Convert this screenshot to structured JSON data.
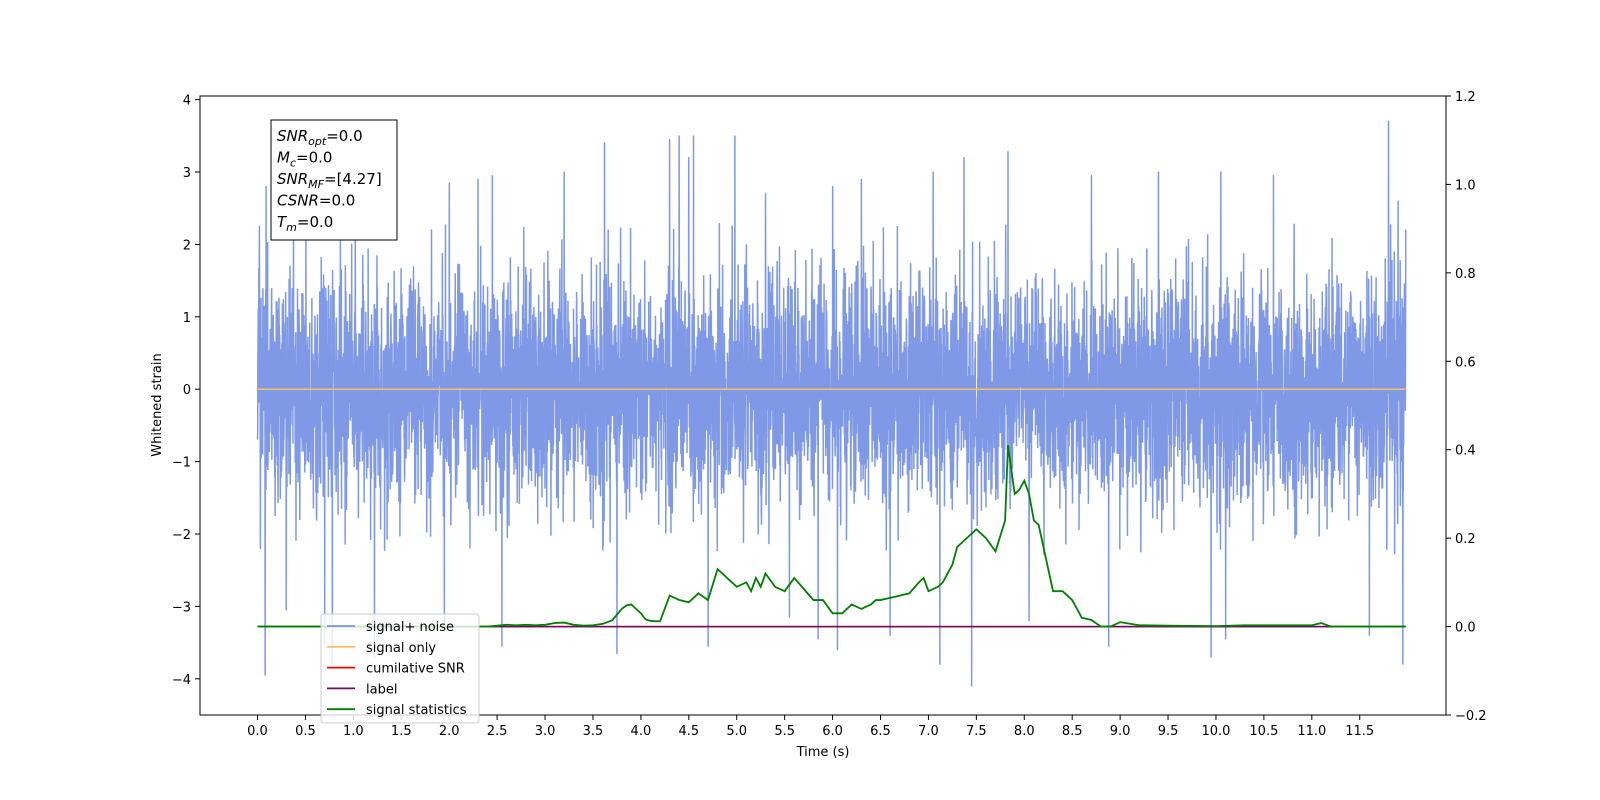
{
  "chart_data": {
    "type": "line",
    "xlabel": "Time (s)",
    "ylabel": "Whitened strain",
    "xlim": [
      -0.6,
      12.4
    ],
    "ylim": [
      -4.5,
      4.05
    ],
    "y2lim": [
      -0.2,
      1.2
    ],
    "x_ticks": [
      0.0,
      0.5,
      1.0,
      1.5,
      2.0,
      2.5,
      3.0,
      3.5,
      4.0,
      4.5,
      5.0,
      5.5,
      6.0,
      6.5,
      7.0,
      7.5,
      8.0,
      8.5,
      9.0,
      9.5,
      10.0,
      10.5,
      11.0,
      11.5
    ],
    "x_tick_labels": [
      "0.0",
      "0.5",
      "1.0",
      "1.5",
      "2.0",
      "2.5",
      "3.0",
      "3.5",
      "4.0",
      "4.5",
      "5.0",
      "5.5",
      "6.0",
      "6.5",
      "7.0",
      "7.5",
      "8.0",
      "8.5",
      "9.0",
      "9.5",
      "10.0",
      "10.5",
      "11.0",
      "11.5"
    ],
    "y_ticks": [
      4,
      3,
      2,
      1,
      0,
      -1,
      -2,
      -3,
      -4
    ],
    "y_tick_labels": [
      "4",
      "3",
      "2",
      "1",
      "0",
      "−1",
      "−2",
      "−3",
      "−4"
    ],
    "y2_ticks": [
      1.2,
      1.0,
      0.8,
      0.6,
      0.4,
      0.2,
      0.0,
      -0.2
    ],
    "y2_tick_labels": [
      "1.2",
      "1.0",
      "0.8",
      "0.6",
      "0.4",
      "0.2",
      "0.0",
      "−0.2"
    ],
    "annotation": [
      {
        "base": "SNR",
        "sub": "opt",
        "value": "=0.0"
      },
      {
        "base": "M",
        "sub": "c",
        "value": "=0.0"
      },
      {
        "base": "SNR",
        "sub": "MF",
        "value": "=[4.27]"
      },
      {
        "base": "CSNR",
        "sub": "",
        "value": "=0.0"
      },
      {
        "base": "T",
        "sub": "m",
        "value": "=0.0"
      }
    ],
    "legend_position": "lower-left",
    "series": [
      {
        "name": "signal+ noise",
        "color": "#7893e6",
        "axis": "left",
        "note": "white noise, amplitude ~ +/-2.3, extremes listed below",
        "x_range": [
          0.0,
          11.98
        ],
        "spikes": [
          [
            0.02,
            2.25
          ],
          [
            0.03,
            -2.2
          ],
          [
            0.08,
            -3.95
          ],
          [
            0.09,
            2.8
          ],
          [
            0.3,
            -3.05
          ],
          [
            0.7,
            -3.5
          ],
          [
            0.78,
            -3.8
          ],
          [
            1.02,
            2.6
          ],
          [
            1.22,
            -3.7
          ],
          [
            1.95,
            -3.3
          ],
          [
            2.0,
            2.85
          ],
          [
            2.3,
            2.9
          ],
          [
            2.45,
            2.95
          ],
          [
            2.55,
            -3.55
          ],
          [
            3.2,
            3.0
          ],
          [
            3.62,
            3.4
          ],
          [
            3.75,
            -3.65
          ],
          [
            4.3,
            3.45
          ],
          [
            4.4,
            3.5
          ],
          [
            4.5,
            3.2
          ],
          [
            4.55,
            3.5
          ],
          [
            4.7,
            -3.55
          ],
          [
            4.98,
            3.5
          ],
          [
            5.3,
            2.7
          ],
          [
            5.55,
            -3.15
          ],
          [
            5.85,
            -3.45
          ],
          [
            6.0,
            2.8
          ],
          [
            6.05,
            -3.6
          ],
          [
            6.3,
            2.9
          ],
          [
            6.6,
            -3.4
          ],
          [
            7.05,
            3.0
          ],
          [
            7.12,
            -3.8
          ],
          [
            7.37,
            3.2
          ],
          [
            7.45,
            -4.1
          ],
          [
            7.83,
            3.28
          ],
          [
            8.05,
            -3.2
          ],
          [
            8.7,
            2.95
          ],
          [
            8.88,
            -3.55
          ],
          [
            9.4,
            3.0
          ],
          [
            9.95,
            -3.7
          ],
          [
            10.05,
            3.0
          ],
          [
            10.1,
            -3.45
          ],
          [
            10.6,
            2.95
          ],
          [
            11.6,
            -3.4
          ],
          [
            11.8,
            3.7
          ],
          [
            11.9,
            2.6
          ],
          [
            11.95,
            -3.8
          ],
          [
            11.98,
            2.2
          ]
        ]
      },
      {
        "name": "signal only",
        "color": "#ffbf66",
        "axis": "left",
        "x": [
          0.0,
          11.98
        ],
        "y": [
          0.0,
          0.0
        ]
      },
      {
        "name": "cumilative SNR",
        "color": "#ff0000",
        "axis": "right",
        "x": [
          0.0,
          11.98
        ],
        "y": [
          0.0,
          0.0
        ]
      },
      {
        "name": "label",
        "color": "#6a0d6a",
        "axis": "right",
        "x": [
          0.0,
          11.98
        ],
        "y": [
          0.0,
          0.0
        ]
      },
      {
        "name": "signal statistics",
        "color": "#007f00",
        "axis": "right",
        "x": [
          0.0,
          2.4,
          2.5,
          2.6,
          2.7,
          2.8,
          2.9,
          3.0,
          3.1,
          3.2,
          3.3,
          3.4,
          3.5,
          3.6,
          3.7,
          3.8,
          3.85,
          3.9,
          3.95,
          4.0,
          4.05,
          4.1,
          4.15,
          4.2,
          4.3,
          4.4,
          4.5,
          4.55,
          4.6,
          4.7,
          4.8,
          4.85,
          4.9,
          5.0,
          5.1,
          5.15,
          5.2,
          5.25,
          5.3,
          5.4,
          5.5,
          5.6,
          5.7,
          5.8,
          5.9,
          6.0,
          6.1,
          6.2,
          6.3,
          6.4,
          6.45,
          6.5,
          6.6,
          6.7,
          6.8,
          6.9,
          6.95,
          7.0,
          7.1,
          7.15,
          7.2,
          7.25,
          7.3,
          7.4,
          7.5,
          7.6,
          7.7,
          7.8,
          7.83,
          7.9,
          7.95,
          8.0,
          8.05,
          8.1,
          8.15,
          8.2,
          8.3,
          8.4,
          8.5,
          8.6,
          8.7,
          8.8,
          8.9,
          9.0,
          9.2,
          9.5,
          10.0,
          10.3,
          10.6,
          11.0,
          11.1,
          11.2,
          11.98
        ],
        "y": [
          0.0,
          0.0,
          0.002,
          0.004,
          0.003,
          0.004,
          0.003,
          0.004,
          0.008,
          0.009,
          0.004,
          0.002,
          0.003,
          0.006,
          0.014,
          0.04,
          0.048,
          0.05,
          0.04,
          0.03,
          0.016,
          0.013,
          0.012,
          0.012,
          0.07,
          0.06,
          0.055,
          0.065,
          0.075,
          0.06,
          0.13,
          0.12,
          0.11,
          0.09,
          0.1,
          0.08,
          0.11,
          0.09,
          0.12,
          0.09,
          0.08,
          0.11,
          0.085,
          0.06,
          0.06,
          0.03,
          0.03,
          0.05,
          0.04,
          0.05,
          0.06,
          0.06,
          0.065,
          0.07,
          0.075,
          0.1,
          0.11,
          0.08,
          0.09,
          0.1,
          0.12,
          0.14,
          0.18,
          0.2,
          0.22,
          0.2,
          0.17,
          0.24,
          0.41,
          0.3,
          0.31,
          0.33,
          0.3,
          0.24,
          0.23,
          0.18,
          0.08,
          0.08,
          0.06,
          0.02,
          0.015,
          0.0,
          0.0,
          0.01,
          0.003,
          0.002,
          0.001,
          0.003,
          0.003,
          0.003,
          0.008,
          0.0,
          0.0
        ]
      }
    ]
  }
}
